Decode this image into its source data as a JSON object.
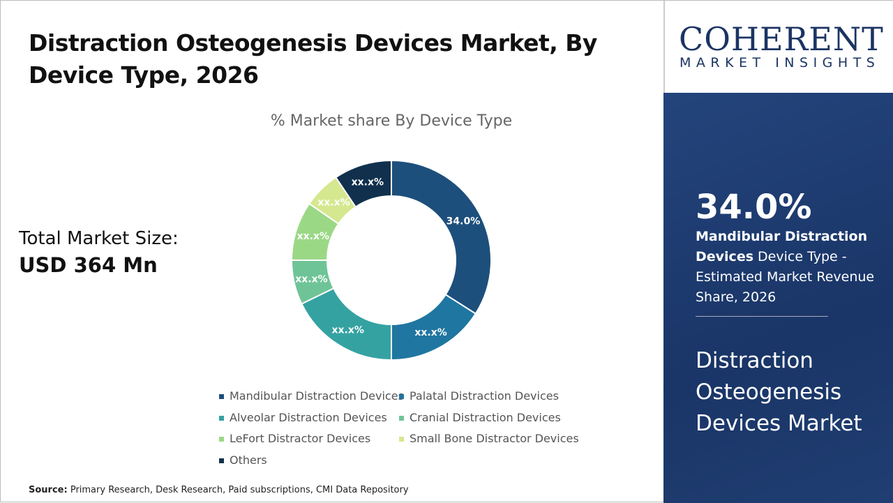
{
  "title": "Distraction Osteogenesis Devices Market, By Device Type, 2026",
  "total_market": {
    "label": "Total Market Size:",
    "value": "USD 364 Mn"
  },
  "source": {
    "label": "Source:",
    "text": "Primary Research, Desk Research, Paid subscriptions, CMI Data Repository"
  },
  "logo": {
    "line1": "COHERENT",
    "line2": "MARKET INSIGHTS"
  },
  "panel": {
    "percent": "34.0%",
    "highlight": "Mandibular Distraction Devices",
    "desc": " Device Type - Estimated Market Revenue Share, 2026",
    "market": "Distraction Osteogenesis Devices Market"
  },
  "chart_data": {
    "type": "pie",
    "donut": true,
    "title": "% Market share By Device Type",
    "legend_position": "bottom",
    "categories": [
      "Mandibular Distraction Devices",
      "Palatal Distraction Devices",
      "Alveolar Distraction Devices",
      "Cranial Distraction Devices",
      "LeFort Distractor Devices",
      "Small Bone Distractor Devices",
      "Others"
    ],
    "values": [
      34.0,
      16.0,
      17.8,
      7.2,
      9.6,
      6.0,
      9.4
    ],
    "labels": [
      "34.0%",
      "xx.x%",
      "xx.x%",
      "xx.x%",
      "xx.x%",
      "xx.x%",
      "xx.x%"
    ],
    "colors": [
      "#1d4f7c",
      "#1f76a1",
      "#35a2a2",
      "#6fc497",
      "#9bd886",
      "#d5e88f",
      "#10304d"
    ]
  }
}
